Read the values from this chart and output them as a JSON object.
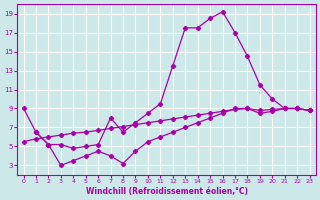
{
  "xlabel": "Windchill (Refroidissement éolien,°C)",
  "bg_color": "#cce8e8",
  "grid_color": "#ffffff",
  "line_color": "#aa00aa",
  "xlim": [
    -0.5,
    23.5
  ],
  "ylim": [
    2,
    20
  ],
  "xticks": [
    0,
    1,
    2,
    3,
    4,
    5,
    6,
    7,
    8,
    9,
    10,
    11,
    12,
    13,
    14,
    15,
    16,
    17,
    18,
    19,
    20,
    21,
    22,
    23
  ],
  "yticks": [
    3,
    5,
    7,
    9,
    11,
    13,
    15,
    17,
    19
  ],
  "line1_x": [
    0,
    1,
    2,
    3,
    4,
    5,
    6,
    7,
    8,
    9,
    10,
    11,
    12,
    13,
    14,
    15,
    16,
    17,
    18,
    19,
    20,
    21,
    22,
    23
  ],
  "line1_y": [
    9,
    6.5,
    5.2,
    5.2,
    4.8,
    5.0,
    5.2,
    8.0,
    6.5,
    7.5,
    8.5,
    9.5,
    13.5,
    17.5,
    17.5,
    18.5,
    19.2,
    17.0,
    14.5,
    11.5,
    10.0,
    9.0,
    9.0,
    8.8
  ],
  "line2_x": [
    1,
    2,
    3,
    4,
    5,
    6,
    7,
    8,
    9,
    10,
    11,
    12,
    13,
    14,
    15,
    16,
    17,
    18,
    19,
    20,
    21,
    22,
    23
  ],
  "line2_y": [
    6.5,
    5.2,
    3.0,
    3.5,
    4.0,
    4.5,
    4.0,
    3.2,
    4.5,
    5.5,
    6.0,
    6.5,
    7.0,
    7.5,
    8.0,
    8.5,
    9.0,
    9.0,
    8.5,
    8.7,
    9.0,
    9.0,
    8.8
  ],
  "line3_x": [
    0,
    1,
    2,
    3,
    4,
    5,
    6,
    7,
    8,
    9,
    10,
    11,
    12,
    13,
    14,
    15,
    16,
    17,
    18,
    19,
    20,
    21,
    22,
    23
  ],
  "line3_y": [
    5.5,
    5.8,
    6.0,
    6.2,
    6.4,
    6.5,
    6.7,
    6.9,
    7.1,
    7.3,
    7.5,
    7.7,
    7.9,
    8.1,
    8.3,
    8.5,
    8.7,
    8.9,
    9.0,
    8.8,
    8.9,
    9.0,
    9.0,
    8.8
  ]
}
